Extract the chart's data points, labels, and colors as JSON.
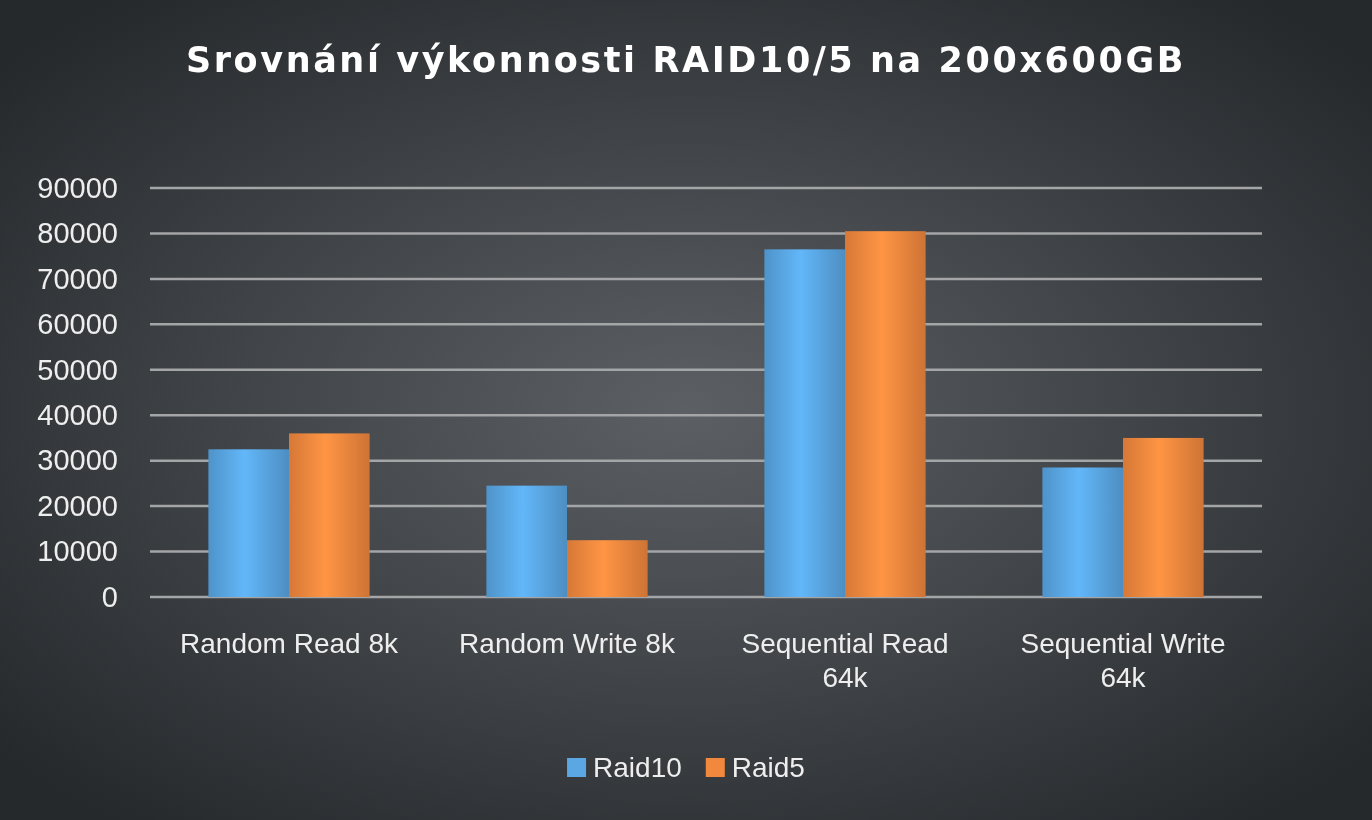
{
  "chart_data": {
    "type": "bar",
    "title": "Srovnání výkonnosti RAID10/5 na 200x600GB",
    "categories": [
      "Random Read 8k",
      "Random Write 8k",
      "Sequential Read 64k",
      "Sequential Write 64k"
    ],
    "series": [
      {
        "name": "Raid10",
        "color": "#5aa7e4",
        "values": [
          32500,
          24500,
          76500,
          28500
        ]
      },
      {
        "name": "Raid5",
        "color": "#f2883e",
        "values": [
          36000,
          12500,
          80500,
          35000
        ]
      }
    ],
    "ylim": [
      0,
      90000
    ],
    "yticks": [
      0,
      10000,
      20000,
      30000,
      40000,
      50000,
      60000,
      70000,
      80000,
      90000
    ],
    "grid": "y",
    "legend": "bottom"
  }
}
